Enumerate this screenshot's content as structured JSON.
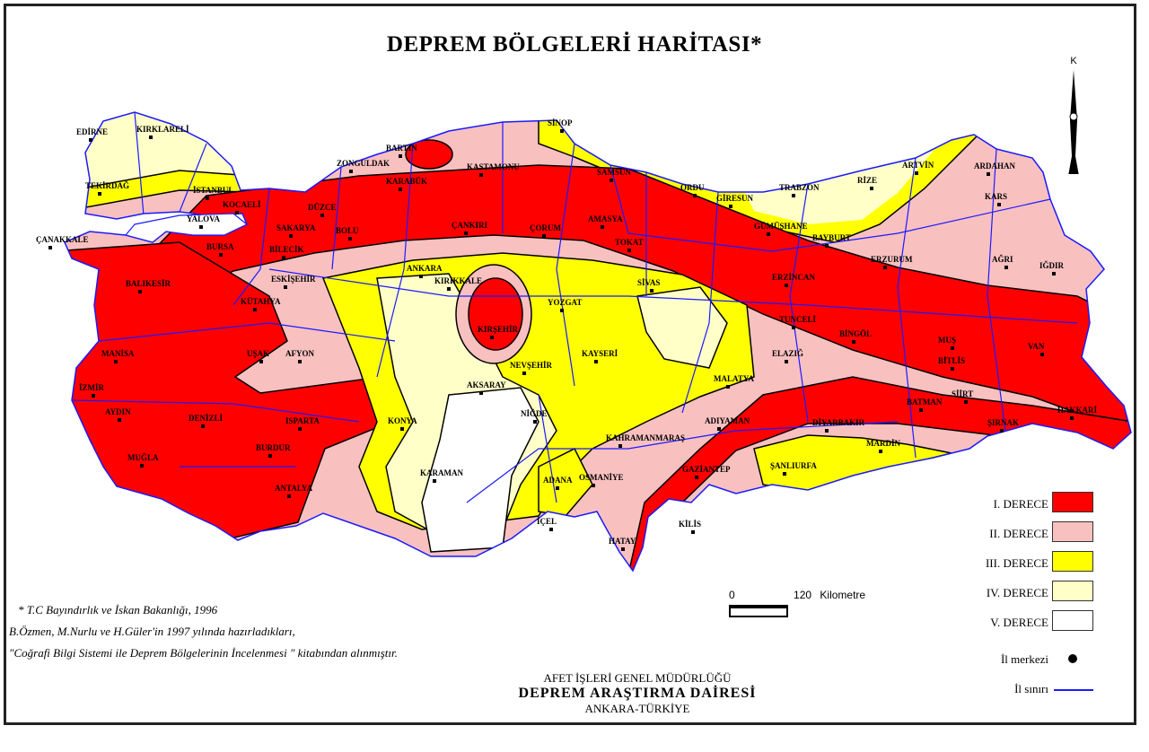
{
  "title": "DEPREM BÖLGELERİ HARİTASI*",
  "north_label": "K",
  "colors": {
    "zone1": "#ff0000",
    "zone2": "#f9c0c0",
    "zone3": "#ffff00",
    "zone4": "#ffffc8",
    "zone5": "#ffffff",
    "province_border": "#1a1aff"
  },
  "legend": [
    {
      "label": "I. DERECE",
      "color": "#ff0000"
    },
    {
      "label": "II. DERECE",
      "color": "#f9c0c0"
    },
    {
      "label": "III. DERECE",
      "color": "#ffff00"
    },
    {
      "label": "IV. DERECE",
      "color": "#ffffc8"
    },
    {
      "label": "V. DERECE",
      "color": "#ffffff"
    }
  ],
  "legend_symbols": {
    "capital": "İl merkezi",
    "border": "İl sınırı"
  },
  "scale": {
    "start": "0",
    "end": "120",
    "unit": "Kilometre"
  },
  "notes": {
    "source": "* T.C Bayındırlık ve İskan Bakanlığı, 1996",
    "authors": "B.Özmen, M.Nurlu ve H.Güler'in 1997 yılında hazırladıkları,",
    "book": "\"Coğrafi Bilgi Sistemi ile Deprem Bölgelerinin İncelenmesi \" kitabından alınmıştır."
  },
  "organization": {
    "line1": "AFET İŞLERİ GENEL MÜDÜRLÜĞÜ",
    "line2": "DEPREM ARAŞTIRMA DAİRESİ",
    "line3": "ANKARA-TÜRKİYE"
  },
  "cities": [
    "EDİRNE",
    "KIRKLARELİ",
    "TEKİRDAĞ",
    "İSTANBUL",
    "KOCAELİ",
    "YALOVA",
    "SAKARYA",
    "DÜZCE",
    "BOLU",
    "BURSA",
    "BİLECİK",
    "ÇANAKKALE",
    "BALIKESİR",
    "ESKİŞEHİR",
    "KÜTAHYA",
    "MANİSA",
    "İZMİR",
    "UŞAK",
    "AFYON",
    "AYDIN",
    "DENİZLİ",
    "ISPARTA",
    "BURDUR",
    "MUĞLA",
    "ANTALYA",
    "KONYA",
    "KARAMAN",
    "AKSARAY",
    "NİĞDE",
    "NEVŞEHİR",
    "KIRŞEHİR",
    "KIRIKKALE",
    "ANKARA",
    "YOZGAT",
    "KAYSERİ",
    "SİVAS",
    "ÇORUM",
    "ÇANKIRI",
    "AMASYA",
    "TOKAT",
    "SAMSUN",
    "SİNOP",
    "BARTIN",
    "ZONGULDAK",
    "KARABÜK",
    "KASTAMONU",
    "ORDU",
    "GİRESUN",
    "TRABZON",
    "RİZE",
    "ARTVİN",
    "ARDAHAN",
    "KARS",
    "GÜMÜŞHANE",
    "BAYBURT",
    "ERZURUM",
    "IĞDIR",
    "AĞRI",
    "ERZİNCAN",
    "TUNCELİ",
    "BİNGÖL",
    "MUŞ",
    "VAN",
    "BİTLİS",
    "ELAZIĞ",
    "MALATYA",
    "SİİRT",
    "ŞIRNAK",
    "HAKKARİ",
    "BATMAN",
    "DİYARBAKIR",
    "MARDİN",
    "ADIYAMAN",
    "ŞANLIURFA",
    "GAZİANTEP",
    "KAHRAMANMARAŞ",
    "OSMANİYE",
    "ADANA",
    "İÇEL",
    "HATAY",
    "KİLİS"
  ]
}
